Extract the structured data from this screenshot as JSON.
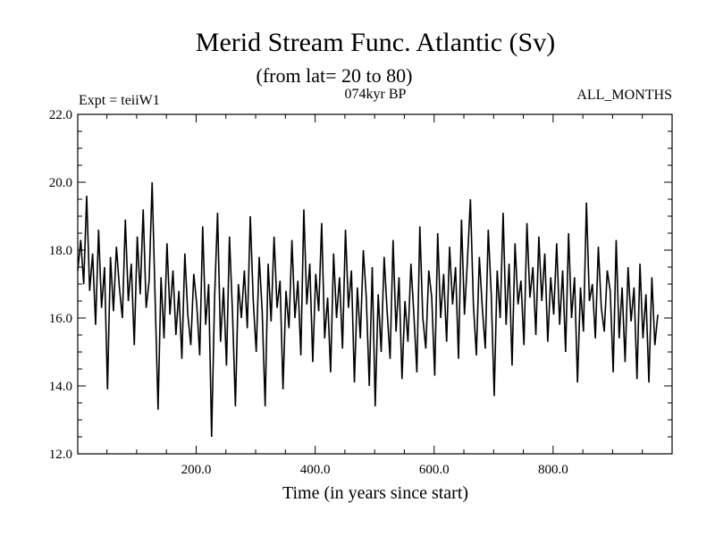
{
  "chart_data": {
    "type": "line",
    "title": "Merid Stream Func. Atlantic (Sv)",
    "subtitle": "(from lat= 20 to 80)",
    "experiment_label": "Expt = teiiW1",
    "period_label": "074kyr BP",
    "months_label": "ALL_MONTHS",
    "xlabel": "Time (in years since start)",
    "ylabel": "",
    "xlim": [
      1,
      1000
    ],
    "ylim": [
      12.0,
      22.0
    ],
    "x_ticks": [
      200,
      400,
      600,
      800
    ],
    "x_tick_labels": [
      "200.0",
      "400.0",
      "600.0",
      "800.0"
    ],
    "y_ticks": [
      12,
      14,
      16,
      18,
      20,
      22
    ],
    "y_tick_labels": [
      "12.0",
      "14.0",
      "16.0",
      "18.0",
      "20.0",
      "22.0"
    ],
    "grid": false,
    "legend": "none",
    "line_color": "#000000",
    "series": [
      {
        "x_start": 1,
        "x_step": 5,
        "values": [
          17.4,
          18.3,
          17.0,
          19.6,
          16.8,
          17.9,
          15.8,
          18.6,
          16.3,
          17.5,
          13.9,
          17.8,
          16.2,
          18.1,
          16.9,
          16.0,
          18.9,
          16.5,
          17.6,
          15.2,
          18.4,
          16.7,
          19.2,
          16.3,
          17.1,
          20.0,
          16.6,
          13.3,
          17.2,
          15.4,
          18.2,
          16.1,
          17.4,
          15.5,
          16.8,
          14.8,
          17.9,
          16.1,
          15.2,
          17.3,
          16.4,
          14.9,
          18.7,
          15.8,
          17.0,
          12.5,
          16.6,
          19.1,
          15.3,
          16.9,
          14.6,
          18.4,
          16.2,
          13.4,
          17.0,
          16.0,
          17.4,
          15.7,
          19.0,
          16.5,
          15.0,
          17.8,
          16.2,
          13.4,
          17.6,
          15.9,
          18.4,
          16.3,
          17.1,
          13.9,
          16.8,
          15.7,
          18.3,
          16.0,
          17.1,
          14.9,
          19.2,
          16.4,
          17.6,
          14.7,
          17.3,
          16.2,
          18.8,
          15.4,
          16.6,
          14.4,
          17.9,
          16.0,
          17.2,
          15.1,
          18.6,
          16.3,
          17.4,
          14.1,
          16.9,
          15.4,
          18.0,
          16.6,
          14.0,
          17.5,
          13.4,
          16.7,
          15.0,
          17.8,
          16.2,
          14.8,
          18.3,
          15.6,
          17.2,
          14.2,
          16.5,
          15.3,
          17.6,
          16.1,
          14.4,
          18.7,
          16.0,
          15.1,
          17.4,
          16.6,
          14.3,
          18.5,
          16.0,
          17.3,
          15.3,
          18.1,
          16.4,
          17.5,
          14.8,
          18.9,
          16.1,
          17.7,
          19.5,
          16.4,
          14.9,
          17.8,
          16.3,
          15.1,
          18.6,
          16.7,
          13.7,
          17.4,
          16.0,
          19.1,
          15.8,
          17.6,
          14.6,
          18.2,
          16.4,
          17.1,
          15.2,
          18.8,
          16.6,
          17.5,
          15.5,
          18.4,
          16.5,
          17.9,
          15.3,
          17.2,
          16.1,
          18.2,
          15.8,
          17.4,
          15.0,
          18.5,
          16.0,
          17.2,
          14.1,
          16.9,
          15.6,
          19.4,
          16.5,
          17.0,
          15.4,
          18.1,
          16.3,
          15.6,
          17.4,
          16.8,
          14.4,
          18.3,
          15.4,
          16.9,
          14.7,
          17.5,
          15.9,
          16.9,
          14.2,
          17.6,
          15.4,
          16.7,
          14.1,
          17.2,
          15.2,
          16.1
        ]
      }
    ]
  }
}
